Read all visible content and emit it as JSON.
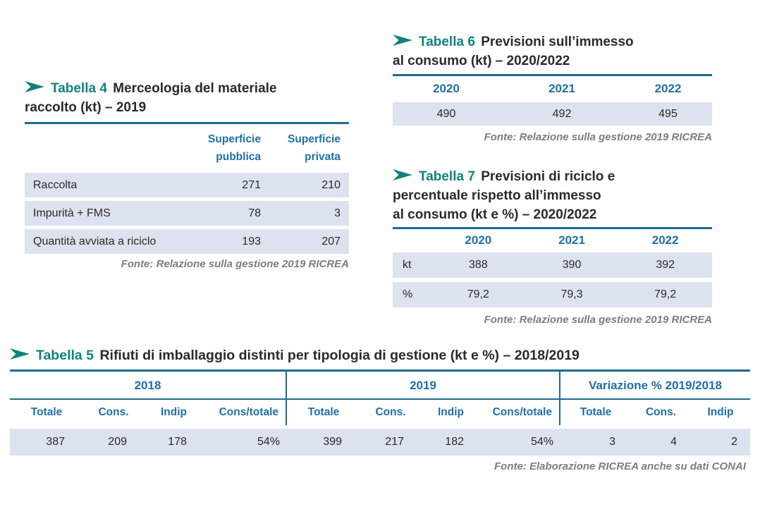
{
  "colors": {
    "teal_accent": "#0f837b",
    "blue_header": "#1f70a6",
    "rule_blue": "#1d6b90",
    "row_background": "#dce2ee",
    "body_text": "#2b2a28",
    "fonte_gray": "#7d7d7d"
  },
  "table4": {
    "label": "Tabella 4",
    "title_lines": [
      "Merceologia del materiale",
      "raccolto (kt) – 2019"
    ],
    "col_headers": [
      "Superficie pubblica",
      "Superficie privata"
    ],
    "rows": [
      {
        "label": "Raccolta",
        "values": [
          "271",
          "210"
        ]
      },
      {
        "label": "Impurità + FMS",
        "values": [
          "78",
          "3"
        ]
      },
      {
        "label": "Quantità avviata a riciclo",
        "values": [
          "193",
          "207"
        ]
      }
    ],
    "fonte": "Fonte: Relazione sulla gestione 2019 RICREA"
  },
  "table6": {
    "label": "Tabella 6",
    "title_lines": [
      "Previsioni sull’immesso",
      "al consumo (kt) – 2020/2022"
    ],
    "col_headers": [
      "2020",
      "2021",
      "2022"
    ],
    "values": [
      "490",
      "492",
      "495"
    ],
    "fonte": "Fonte: Relazione sulla gestione 2019 RICREA"
  },
  "table7": {
    "label": "Tabella 7",
    "title_lines": [
      "Previsioni di riciclo e",
      "percentuale rispetto all’immesso",
      "al consumo (kt e %) – 2020/2022"
    ],
    "col_headers": [
      "2020",
      "2021",
      "2022"
    ],
    "rows": [
      {
        "label": "kt",
        "values": [
          "388",
          "390",
          "392"
        ]
      },
      {
        "label": "%",
        "values": [
          "79,2",
          "79,3",
          "79,2"
        ]
      }
    ],
    "fonte": "Fonte: Relazione sulla gestione 2019 RICREA"
  },
  "table5": {
    "label": "Tabella 5",
    "title": "Rifiuti di imballaggio distinti per tipologia di gestione (kt e %) – 2018/2019",
    "groups": [
      {
        "label": "2018",
        "cols": [
          "Totale",
          "Cons.",
          "Indip",
          "Cons/totale"
        ],
        "values": [
          "387",
          "209",
          "178",
          "54%"
        ]
      },
      {
        "label": "2019",
        "cols": [
          "Totale",
          "Cons.",
          "Indip",
          "Cons/totale"
        ],
        "values": [
          "399",
          "217",
          "182",
          "54%"
        ]
      },
      {
        "label": "Variazione % 2019/2018",
        "cols": [
          "Totale",
          "Cons.",
          "Indip"
        ],
        "values": [
          "3",
          "4",
          "2"
        ]
      }
    ],
    "fonte": "Fonte: Elaborazione RICREA anche su dati CONAI"
  }
}
